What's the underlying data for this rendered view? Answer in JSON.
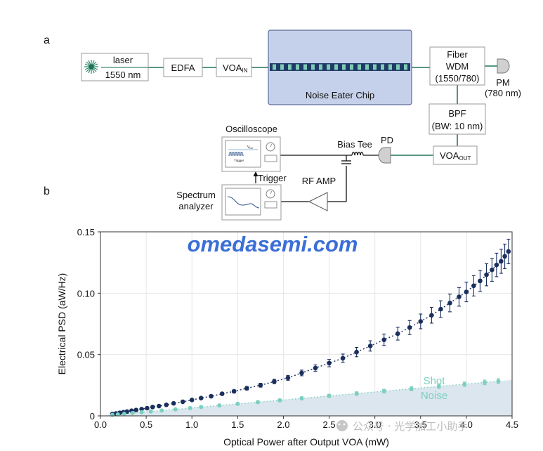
{
  "panels": {
    "a": "a",
    "b": "b"
  },
  "diagram": {
    "laser": {
      "line1": "laser",
      "line2": "1550 nm"
    },
    "edfa": "EDFA",
    "voa_in": {
      "main": "VOA",
      "sub": "IN"
    },
    "chip": "Noise Eater Chip",
    "wdm": {
      "line1": "Fiber",
      "line2": "WDM",
      "line3": "(1550/780)"
    },
    "pm": {
      "line1": "PM",
      "line2": "(780 nm)"
    },
    "bpf": {
      "line1": "BPF",
      "line2": "(BW: 10 nm)"
    },
    "voa_out": {
      "main": "VOA",
      "sub": "OUT"
    },
    "pd": "PD",
    "bias_tee": "Bias Tee",
    "oscilloscope": "Oscilloscope",
    "osc_screen": {
      "vdc": "V",
      "vdc_sub": "DC",
      "trigger_small": "Trigger"
    },
    "trigger": "Trigger",
    "rf_amp": "RF AMP",
    "spectrum": {
      "line1": "Spectrum",
      "line2": "analyzer"
    }
  },
  "watermark": "omedasemi.com",
  "footer_watermark": "公众号 · 光学加工小助手",
  "chart_data": {
    "type": "scatter",
    "xlabel": "Optical Power after Output VOA (mW)",
    "ylabel": "Electrical PSD (aW/Hz)",
    "xlim": [
      0,
      4.5
    ],
    "ylim": [
      0,
      0.15
    ],
    "xticks": [
      "0.0",
      "0.5",
      "1.0",
      "1.5",
      "2.0",
      "2.5",
      "3.0",
      "3.5",
      "4.0",
      "4.5"
    ],
    "yticks": [
      "0",
      "0.05",
      "0.10",
      "0.15"
    ],
    "grid": true,
    "annotation": {
      "line1": "Shot",
      "line2": "Noise"
    },
    "colors": {
      "measured": "#1b2f5e",
      "shot": "#7ccfc0",
      "area": "#dbe6ee"
    },
    "series": [
      {
        "x": [
          0.13,
          0.17,
          0.21,
          0.25,
          0.29,
          0.34,
          0.39,
          0.45,
          0.51,
          0.57,
          0.64,
          0.72,
          0.8,
          0.9,
          1.0,
          1.1,
          1.21,
          1.33,
          1.46,
          1.6,
          1.75,
          1.9,
          2.05,
          2.2,
          2.35,
          2.5,
          2.65,
          2.8,
          2.95,
          3.1,
          3.25,
          3.38,
          3.5,
          3.62,
          3.72,
          3.82,
          3.92,
          4.0,
          4.08,
          4.15,
          4.22,
          4.28,
          4.33,
          4.38,
          4.42,
          4.46
        ],
        "y": [
          0.0015,
          0.002,
          0.0025,
          0.003,
          0.0035,
          0.0042,
          0.0048,
          0.0055,
          0.0063,
          0.0072,
          0.008,
          0.009,
          0.0102,
          0.0115,
          0.013,
          0.0145,
          0.016,
          0.018,
          0.02,
          0.0225,
          0.025,
          0.028,
          0.031,
          0.035,
          0.039,
          0.043,
          0.047,
          0.052,
          0.057,
          0.062,
          0.067,
          0.072,
          0.077,
          0.082,
          0.087,
          0.092,
          0.097,
          0.101,
          0.106,
          0.11,
          0.115,
          0.119,
          0.123,
          0.126,
          0.13,
          0.134
        ],
        "err": [
          0.0005,
          0.0005,
          0.0005,
          0.0005,
          0.0005,
          0.0005,
          0.0005,
          0.0005,
          0.0005,
          0.0006,
          0.0006,
          0.0006,
          0.0007,
          0.0007,
          0.0008,
          0.0008,
          0.0009,
          0.001,
          0.0012,
          0.0014,
          0.0016,
          0.0018,
          0.002,
          0.0023,
          0.0026,
          0.003,
          0.0034,
          0.0038,
          0.0042,
          0.0047,
          0.0052,
          0.0057,
          0.006,
          0.0064,
          0.0068,
          0.0072,
          0.0076,
          0.008,
          0.0083,
          0.0086,
          0.009,
          0.0093,
          0.0096,
          0.0098,
          0.01,
          0.01
        ]
      },
      {
        "x": [
          0.13,
          0.19,
          0.26,
          0.35,
          0.45,
          0.55,
          0.67,
          0.82,
          0.98,
          1.1,
          1.3,
          1.5,
          1.72,
          1.96,
          2.2,
          2.5,
          2.8,
          3.1,
          3.4,
          3.7,
          3.98,
          4.2,
          4.35
        ],
        "y": [
          0.0008,
          0.0012,
          0.0017,
          0.0023,
          0.003,
          0.0036,
          0.0044,
          0.0053,
          0.0064,
          0.0072,
          0.0085,
          0.0098,
          0.0112,
          0.0127,
          0.0143,
          0.0163,
          0.0182,
          0.0202,
          0.0221,
          0.0241,
          0.0258,
          0.0273,
          0.0283
        ],
        "err": [
          0.0003,
          0.0003,
          0.0003,
          0.0003,
          0.0004,
          0.0004,
          0.0004,
          0.0005,
          0.0006,
          0.0007,
          0.0008,
          0.0009,
          0.001,
          0.0011,
          0.0012,
          0.0013,
          0.0014,
          0.0015,
          0.0016,
          0.0017,
          0.0018,
          0.0019,
          0.002
        ]
      }
    ]
  }
}
